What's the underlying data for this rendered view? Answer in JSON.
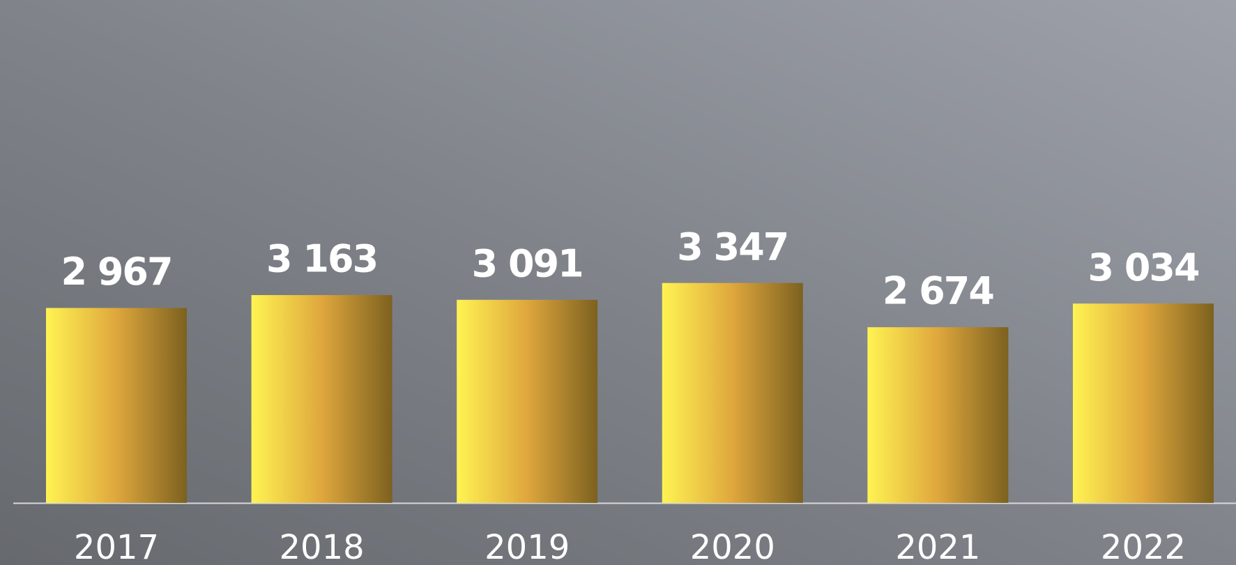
{
  "chart_data": {
    "type": "bar",
    "categories": [
      "2017",
      "2018",
      "2019",
      "2020",
      "2021",
      "2022"
    ],
    "values": [
      2967,
      3163,
      3091,
      3347,
      2674,
      3034
    ],
    "value_labels": [
      "2 967",
      "3 163",
      "3 091",
      "3 347",
      "2 674",
      "3 034"
    ],
    "color": "#e0a83c"
  }
}
